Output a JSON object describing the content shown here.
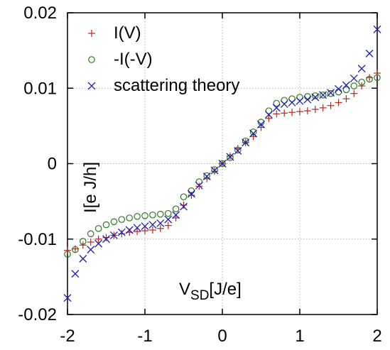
{
  "chart_data": {
    "type": "scatter",
    "title": "",
    "xlabel": "V",
    "xlabel_sub": "SD",
    "xlabel_unit": "[J/e]",
    "ylabel": "I[e J/h]",
    "xlim": [
      -2,
      2
    ],
    "ylim": [
      -0.02,
      0.02
    ],
    "x_ticks": [
      -2,
      -1,
      0,
      1,
      2
    ],
    "x_tick_labels": [
      "-2",
      "-1",
      "0",
      "1",
      "2"
    ],
    "y_ticks": [
      -0.02,
      -0.01,
      0,
      0.01,
      0.02
    ],
    "y_tick_labels": [
      "-0.02",
      "-0.01",
      "0",
      "0.01",
      "0.02"
    ],
    "grid": true,
    "legend_position": "top-left",
    "series": [
      {
        "name": "I(V)",
        "marker": "plus",
        "color": "#b22a1e",
        "x": [
          -2,
          -1.9,
          -1.8,
          -1.7,
          -1.6,
          -1.5,
          -1.4,
          -1.3,
          -1.2,
          -1.1,
          -1.0,
          -0.9,
          -0.8,
          -0.7,
          -0.6,
          -0.5,
          -0.4,
          -0.3,
          -0.2,
          -0.1,
          0,
          0.1,
          0.2,
          0.3,
          0.4,
          0.5,
          0.6,
          0.7,
          0.8,
          0.9,
          1.0,
          1.1,
          1.2,
          1.3,
          1.4,
          1.5,
          1.6,
          1.7,
          1.8,
          1.9,
          2.0
        ],
        "y": [
          -0.0115,
          -0.0113,
          -0.0108,
          -0.0104,
          -0.01,
          -0.0098,
          -0.0095,
          -0.0093,
          -0.0091,
          -0.009,
          -0.0089,
          -0.0088,
          -0.0086,
          -0.0082,
          -0.0072,
          -0.0055,
          -0.0042,
          -0.003,
          -0.002,
          -0.001,
          0,
          0.001,
          0.002,
          0.0028,
          0.0036,
          0.0048,
          0.006,
          0.0066,
          0.0067,
          0.0068,
          0.0069,
          0.007,
          0.0072,
          0.0074,
          0.0077,
          0.0081,
          0.0086,
          0.0093,
          0.0103,
          0.0114,
          0.012
        ]
      },
      {
        "name": "-I(-V)",
        "marker": "circle",
        "color": "#2a7a1e",
        "x": [
          -2,
          -1.9,
          -1.8,
          -1.7,
          -1.6,
          -1.5,
          -1.4,
          -1.3,
          -1.2,
          -1.1,
          -1.0,
          -0.9,
          -0.8,
          -0.7,
          -0.6,
          -0.5,
          -0.4,
          -0.3,
          -0.2,
          -0.1,
          0,
          0.1,
          0.2,
          0.3,
          0.4,
          0.5,
          0.6,
          0.7,
          0.8,
          0.9,
          1.0,
          1.1,
          1.2,
          1.3,
          1.4,
          1.5,
          1.6,
          1.7,
          1.8,
          1.9,
          2.0
        ],
        "y": [
          -0.012,
          -0.0114,
          -0.0103,
          -0.0093,
          -0.0086,
          -0.0081,
          -0.0077,
          -0.0074,
          -0.0072,
          -0.007,
          -0.0069,
          -0.0068,
          -0.0067,
          -0.0066,
          -0.006,
          -0.0044,
          -0.0036,
          -0.0024,
          -0.0016,
          -0.0008,
          0,
          0.0008,
          0.0018,
          0.003,
          0.0042,
          0.0055,
          0.007,
          0.008,
          0.0084,
          0.0086,
          0.0088,
          0.0089,
          0.009,
          0.0091,
          0.0093,
          0.0095,
          0.0098,
          0.0103,
          0.0108,
          0.0112,
          0.0114
        ]
      },
      {
        "name": "scattering theory",
        "marker": "x",
        "color": "#1e1eb2",
        "x": [
          -2,
          -1.9,
          -1.8,
          -1.7,
          -1.6,
          -1.5,
          -1.4,
          -1.3,
          -1.2,
          -1.1,
          -1.0,
          -0.9,
          -0.8,
          -0.7,
          -0.6,
          -0.5,
          -0.4,
          -0.3,
          -0.2,
          -0.1,
          0,
          0.1,
          0.2,
          0.3,
          0.4,
          0.5,
          0.6,
          0.7,
          0.8,
          0.9,
          1.0,
          1.1,
          1.2,
          1.3,
          1.4,
          1.5,
          1.6,
          1.7,
          1.8,
          1.9,
          2.0
        ],
        "y": [
          -0.0178,
          -0.0146,
          -0.0126,
          -0.0114,
          -0.0106,
          -0.01,
          -0.0095,
          -0.0091,
          -0.0088,
          -0.0085,
          -0.0083,
          -0.0081,
          -0.0079,
          -0.0074,
          -0.0068,
          -0.0057,
          -0.004,
          -0.0029,
          -0.0017,
          -0.0009,
          0,
          0.0009,
          0.0017,
          0.0028,
          0.004,
          0.0052,
          0.0065,
          0.0074,
          0.0079,
          0.0081,
          0.0083,
          0.0085,
          0.0088,
          0.0091,
          0.0094,
          0.0099,
          0.0104,
          0.0113,
          0.0126,
          0.0146,
          0.0178
        ]
      }
    ]
  }
}
